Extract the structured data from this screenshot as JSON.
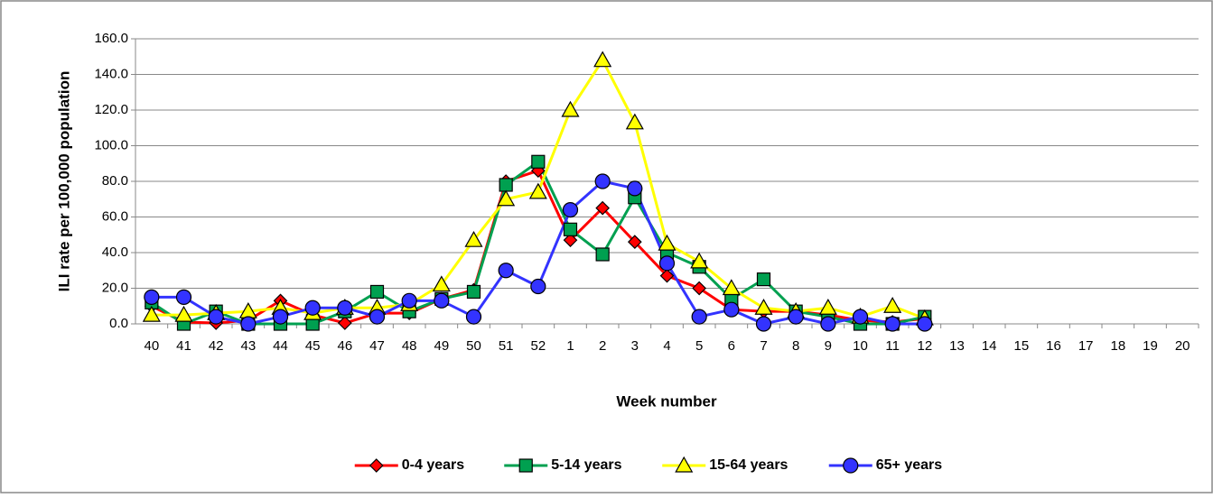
{
  "chart_data": {
    "type": "line",
    "y_label": "ILI rate per 100,000 population",
    "x_label": "Week number",
    "categories": [
      "40",
      "41",
      "42",
      "43",
      "44",
      "45",
      "46",
      "47",
      "48",
      "49",
      "50",
      "51",
      "52",
      "1",
      "2",
      "3",
      "4",
      "5",
      "6",
      "7",
      "8",
      "9",
      "10",
      "11",
      "12",
      "13",
      "14",
      "15",
      "16",
      "17",
      "18",
      "19",
      "20"
    ],
    "ylim": [
      0,
      160
    ],
    "yticks": [
      {
        "value": 0,
        "label": "0.0"
      },
      {
        "value": 20,
        "label": "20.0"
      },
      {
        "value": 40,
        "label": "40.0"
      },
      {
        "value": 60,
        "label": "60.0"
      },
      {
        "value": 80,
        "label": "80.0"
      },
      {
        "value": 100,
        "label": "100.0"
      },
      {
        "value": 120,
        "label": "120.0"
      },
      {
        "value": 140,
        "label": "140.0"
      },
      {
        "value": 160,
        "label": "160.0"
      }
    ],
    "grid": true,
    "legend": "bottom",
    "series": [
      {
        "name": "0-4 years",
        "color": "#ff0000",
        "marker": "diamond",
        "values": [
          10,
          1,
          0.5,
          2,
          13,
          5,
          0.5,
          6,
          6,
          14,
          19,
          80,
          86,
          47,
          65,
          46,
          27,
          20,
          8,
          7,
          7,
          5,
          2,
          1,
          3,
          null,
          null,
          null,
          null,
          null,
          null,
          null,
          null
        ]
      },
      {
        "name": "5-14 years",
        "color": "#00a050",
        "marker": "square",
        "values": [
          12,
          0,
          7,
          0,
          0,
          0,
          7,
          18,
          7,
          14,
          18,
          78,
          91,
          53,
          39,
          71,
          40,
          32,
          14,
          25,
          7,
          4,
          0,
          0,
          4,
          null,
          null,
          null,
          null,
          null,
          null,
          null,
          null
        ]
      },
      {
        "name": "15-64 years",
        "color": "#ffff00",
        "marker": "triangle",
        "values": [
          5,
          5,
          6,
          7,
          9,
          6,
          9,
          9,
          11,
          22,
          47,
          70,
          74,
          120,
          148,
          113,
          45,
          35,
          20,
          9,
          7,
          9,
          4,
          10,
          3,
          null,
          null,
          null,
          null,
          null,
          null,
          null,
          null
        ]
      },
      {
        "name": "65+ years",
        "color": "#3333ff",
        "marker": "circle",
        "values": [
          15,
          15,
          4,
          0,
          4,
          9,
          9,
          4,
          13,
          13,
          4,
          30,
          21,
          64,
          80,
          76,
          34,
          4,
          8,
          0,
          4,
          0,
          4,
          0,
          0,
          null,
          null,
          null,
          null,
          null,
          null,
          null,
          null
        ]
      }
    ]
  }
}
